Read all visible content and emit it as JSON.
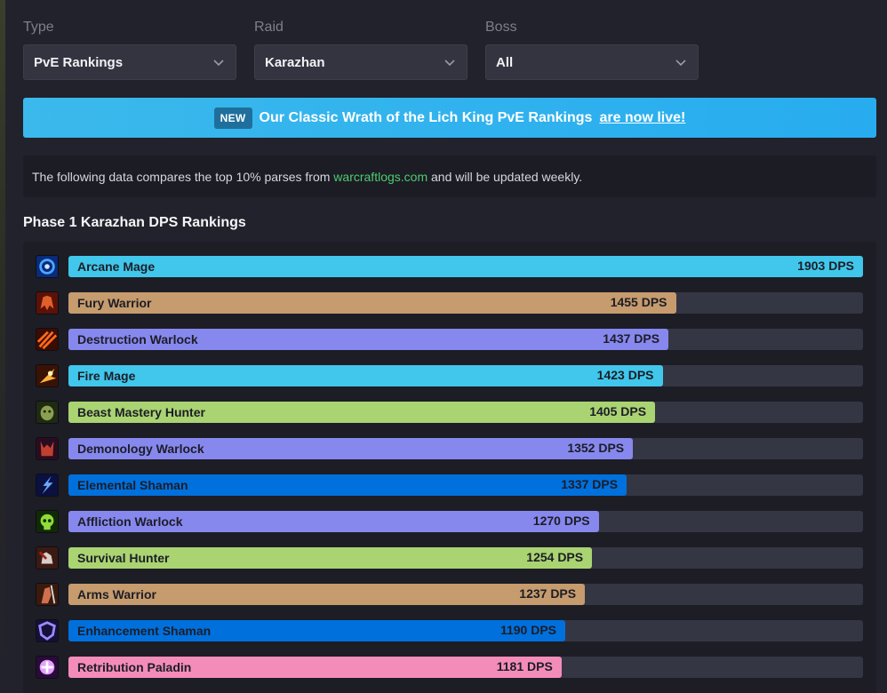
{
  "filters": [
    {
      "label": "Type",
      "value": "PvE Rankings"
    },
    {
      "label": "Raid",
      "value": "Karazhan"
    },
    {
      "label": "Boss",
      "value": "All"
    }
  ],
  "banner": {
    "badge": "NEW",
    "text": "Our Classic Wrath of the Lich King PvE Rankings",
    "link": "are now live!"
  },
  "info": {
    "prefix": "The following data compares the top 10% parses from",
    "link": "warcraftlogs.com",
    "suffix": "and will be updated weekly."
  },
  "section_title": "Phase 1 Karazhan DPS Rankings",
  "chart_data": {
    "type": "bar",
    "orientation": "horizontal",
    "xlim": [
      0,
      1903
    ],
    "unit_suffix": " DPS",
    "categories": [
      "Arcane Mage",
      "Fury Warrior",
      "Destruction Warlock",
      "Fire Mage",
      "Beast Mastery Hunter",
      "Demonology Warlock",
      "Elemental Shaman",
      "Affliction Warlock",
      "Survival Hunter",
      "Arms Warrior",
      "Enhancement Shaman",
      "Retribution Paladin"
    ],
    "values": [
      1903,
      1455,
      1437,
      1423,
      1405,
      1352,
      1337,
      1270,
      1254,
      1237,
      1190,
      1181
    ],
    "colors": [
      "#40c7eb",
      "#c69b6d",
      "#8788ee",
      "#40c7eb",
      "#aad372",
      "#8788ee",
      "#0070dd",
      "#8788ee",
      "#aad372",
      "#c69b6d",
      "#0070dd",
      "#f48cba"
    ],
    "icons": [
      "arcane-mage-icon",
      "fury-warrior-icon",
      "destruction-warlock-icon",
      "fire-mage-icon",
      "beast-mastery-hunter-icon",
      "demonology-warlock-icon",
      "elemental-shaman-icon",
      "affliction-warlock-icon",
      "survival-hunter-icon",
      "arms-warrior-icon",
      "enhancement-shaman-icon",
      "retribution-paladin-icon"
    ]
  }
}
